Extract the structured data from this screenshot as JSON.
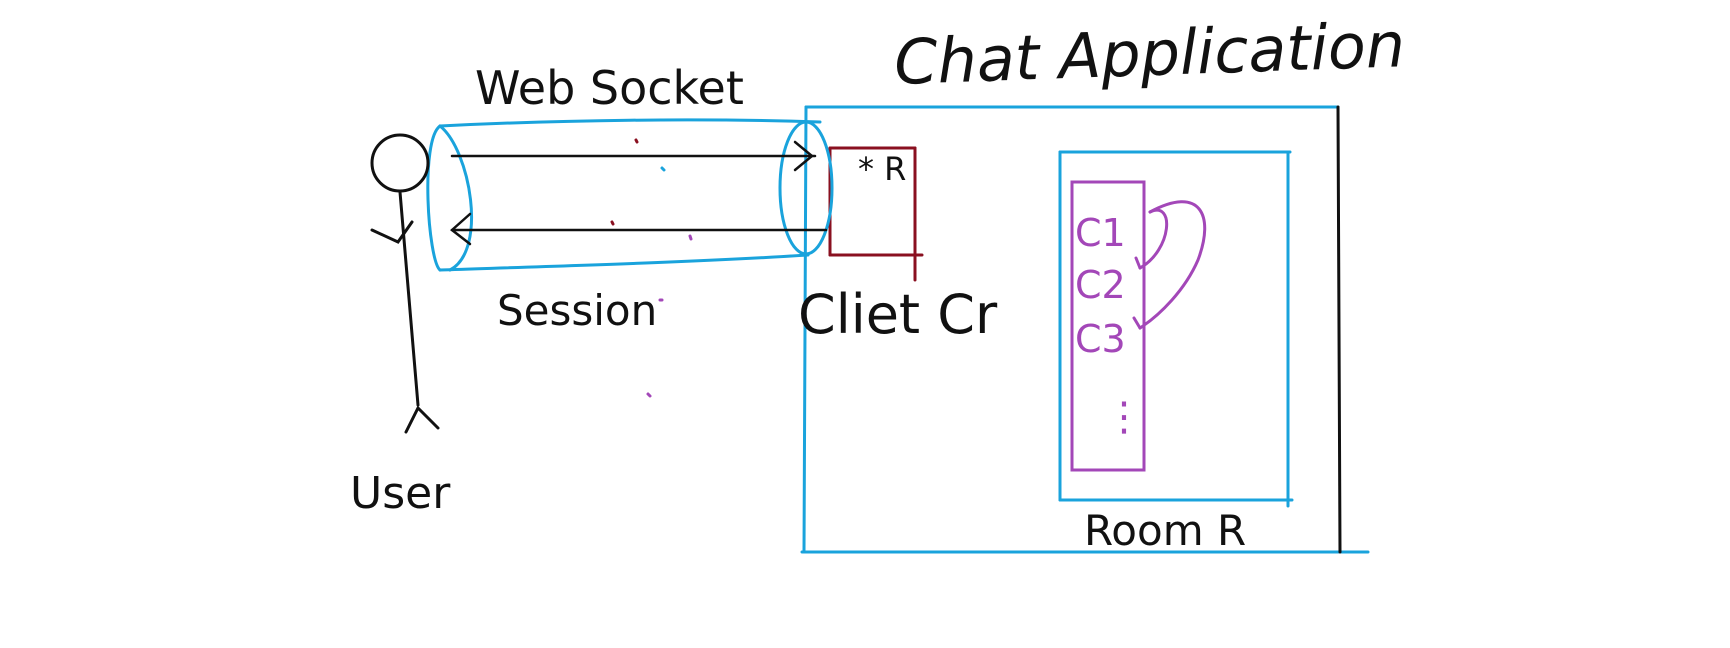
{
  "labels": {
    "title": "Chat Application",
    "websocket": "Web Socket",
    "session": "Session",
    "user": "User",
    "client": "Cliet Cr",
    "client_star": "* R",
    "room": "Room R",
    "clients": [
      "C1",
      "C2",
      "C3"
    ],
    "ellipsis": "⋮"
  },
  "colors": {
    "ink": "#111111",
    "blue": "#1aa3dc",
    "purple": "#a347b8",
    "maroon": "#8a1020"
  }
}
